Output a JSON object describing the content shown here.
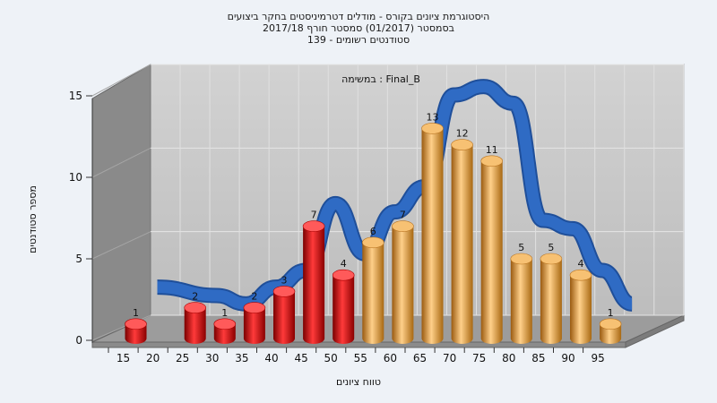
{
  "chart_data": {
    "type": "bar",
    "title_lines": [
      "היסטוגרמת ציונים בקורס - מודלים דטרמיניסטים בחקר ביצועים",
      "בסמסטר  (01/2017)  סמסטר חורף  2017/18",
      "139 - סטודנטים רשומים"
    ],
    "annotation": "במשימה : Final_B",
    "xlabel": "טווח ציונים",
    "ylabel": "מספר סטודנטים",
    "y_ticks": [
      0,
      5,
      10,
      15
    ],
    "x_ticks": [
      "15",
      "20",
      "25",
      "30",
      "35",
      "40",
      "45",
      "50",
      "55",
      "60",
      "65",
      "70",
      "75",
      "80",
      "85",
      "90",
      "95"
    ],
    "ylim": [
      0,
      15
    ],
    "categories": [
      "15",
      "25",
      "30",
      "35",
      "40",
      "45",
      "50",
      "55",
      "60",
      "65",
      "70",
      "75",
      "80",
      "85",
      "90",
      "95"
    ],
    "values": [
      1,
      2,
      1,
      2,
      3,
      7,
      4,
      6,
      7,
      13,
      12,
      11,
      5,
      5,
      4,
      1
    ],
    "bar_groups": [
      "fail",
      "fail",
      "fail",
      "fail",
      "fail",
      "fail",
      "fail",
      "pass",
      "pass",
      "pass",
      "pass",
      "pass",
      "pass",
      "pass",
      "pass",
      "pass"
    ],
    "trend_line": [
      2,
      1.5,
      1,
      2,
      3,
      7,
      4,
      6.5,
      8,
      13.5,
      14,
      13,
      6,
      5.5,
      3,
      1
    ],
    "colors": {
      "fail": "#e01818",
      "pass": "#e8a23a",
      "trend": "#2f6bc4",
      "plot_back": "#c9c9c9",
      "side_wall": "#8a8a8a",
      "floor": "#9a9a9a"
    },
    "grid": true
  }
}
